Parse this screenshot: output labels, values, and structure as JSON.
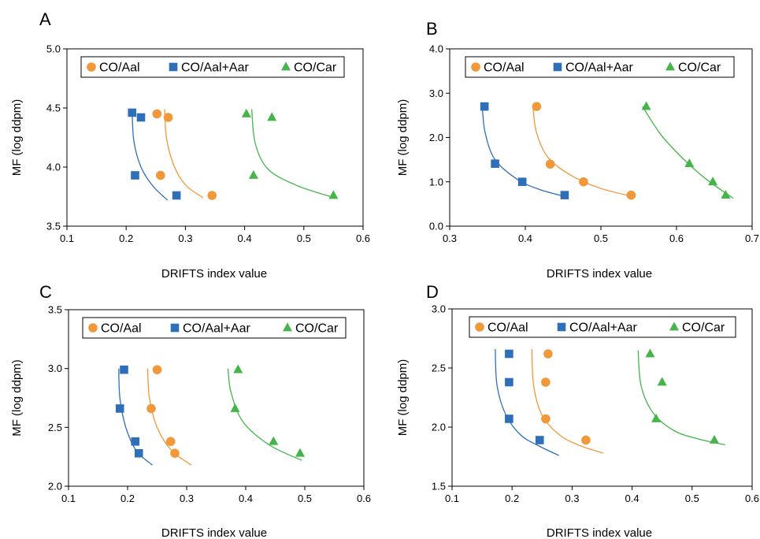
{
  "colors": {
    "aal": "#F0983A",
    "aalaar": "#2F6FB8",
    "car": "#44B549"
  },
  "chart_data": [
    {
      "type": "scatter",
      "panel": "A",
      "xlabel": "DRIFTS index value",
      "ylabel": "MF (log ddpm)",
      "xlim": [
        0.1,
        0.6
      ],
      "ylim": [
        3.5,
        5.0
      ],
      "xticks": [
        "0.1",
        "0.2",
        "0.3",
        "0.4",
        "0.5",
        "0.6"
      ],
      "yticks": [
        "3.5",
        "4.0",
        "4.5",
        "5.0"
      ],
      "legend": "top",
      "grid": false,
      "series": [
        {
          "name": "CO/Aal",
          "marker": "circle",
          "color": "#F0983A",
          "x": [
            0.252,
            0.271,
            0.258,
            0.345
          ],
          "y": [
            4.45,
            4.42,
            3.93,
            3.76
          ],
          "fit": {
            "x": [
              0.265,
              0.268,
              0.28,
              0.3,
              0.33
            ],
            "y": [
              4.49,
              4.25,
              4.02,
              3.85,
              3.74
            ]
          }
        },
        {
          "name": "CO/Aal+Aar",
          "marker": "square",
          "color": "#2F6FB8",
          "x": [
            0.21,
            0.225,
            0.215,
            0.285
          ],
          "y": [
            4.46,
            4.42,
            3.93,
            3.76
          ],
          "fit": {
            "x": [
              0.21,
              0.213,
              0.225,
              0.245,
              0.27
            ],
            "y": [
              4.48,
              4.22,
              4.0,
              3.84,
              3.72
            ]
          }
        },
        {
          "name": "CO/Car",
          "marker": "triangle",
          "color": "#44B549",
          "x": [
            0.403,
            0.446,
            0.415,
            0.55
          ],
          "y": [
            4.45,
            4.42,
            3.93,
            3.76
          ],
          "fit": {
            "x": [
              0.412,
              0.418,
              0.44,
              0.49,
              0.552
            ],
            "y": [
              4.49,
              4.2,
              3.98,
              3.84,
              3.74
            ]
          }
        }
      ]
    },
    {
      "type": "scatter",
      "panel": "B",
      "xlabel": "DRIFTS index value",
      "ylabel": "MF (log ddpm)",
      "xlim": [
        0.3,
        0.7
      ],
      "ylim": [
        0.0,
        4.0
      ],
      "xticks": [
        "0.3",
        "0.4",
        "0.5",
        "0.6",
        "0.7"
      ],
      "yticks": [
        "0.0",
        "1.0",
        "2.0",
        "3.0",
        "4.0"
      ],
      "legend": "top",
      "grid": false,
      "series": [
        {
          "name": "CO/Aal",
          "marker": "circle",
          "color": "#F0983A",
          "x": [
            0.415,
            0.433,
            0.477,
            0.54
          ],
          "y": [
            2.7,
            1.4,
            1.0,
            0.7
          ],
          "fit": {
            "x": [
              0.41,
              0.415,
              0.43,
              0.46,
              0.5,
              0.545
            ],
            "y": [
              2.7,
              2.1,
              1.55,
              1.15,
              0.85,
              0.66
            ]
          }
        },
        {
          "name": "CO/Aal+Aar",
          "marker": "square",
          "color": "#2F6FB8",
          "x": [
            0.346,
            0.36,
            0.396,
            0.452
          ],
          "y": [
            2.7,
            1.41,
            1.0,
            0.7
          ],
          "fit": {
            "x": [
              0.343,
              0.347,
              0.36,
              0.39,
              0.42,
              0.455
            ],
            "y": [
              2.7,
              2.1,
              1.5,
              1.05,
              0.82,
              0.66
            ]
          }
        },
        {
          "name": "CO/Car",
          "marker": "triangle",
          "color": "#44B549",
          "x": [
            0.56,
            0.617,
            0.648,
            0.665
          ],
          "y": [
            2.7,
            1.41,
            1.0,
            0.7
          ],
          "fit": {
            "x": [
              0.555,
              0.58,
              0.61,
              0.64,
              0.675
            ],
            "y": [
              2.7,
              2.05,
              1.5,
              1.05,
              0.63
            ]
          }
        }
      ]
    },
    {
      "type": "scatter",
      "panel": "C",
      "xlabel": "DRIFTS index value",
      "ylabel": "MF (log ddpm)",
      "xlim": [
        0.1,
        0.6
      ],
      "ylim": [
        2.0,
        3.5
      ],
      "xticks": [
        "0.1",
        "0.2",
        "0.3",
        "0.4",
        "0.5",
        "0.6"
      ],
      "yticks": [
        "2.0",
        "2.5",
        "3.0",
        "3.5"
      ],
      "legend": "top",
      "grid": false,
      "series": [
        {
          "name": "CO/Aal",
          "marker": "circle",
          "color": "#F0983A",
          "x": [
            0.25,
            0.24,
            0.273,
            0.28
          ],
          "y": [
            2.99,
            2.66,
            2.38,
            2.28
          ],
          "fit": {
            "x": [
              0.234,
              0.237,
              0.25,
              0.275,
              0.308
            ],
            "y": [
              3.0,
              2.75,
              2.5,
              2.3,
              2.18
            ]
          }
        },
        {
          "name": "CO/Aal+Aar",
          "marker": "square",
          "color": "#2F6FB8",
          "x": [
            0.194,
            0.187,
            0.213,
            0.219
          ],
          "y": [
            2.99,
            2.66,
            2.38,
            2.28
          ],
          "fit": {
            "x": [
              0.185,
              0.187,
              0.197,
              0.215,
              0.242
            ],
            "y": [
              3.0,
              2.75,
              2.5,
              2.3,
              2.18
            ]
          }
        },
        {
          "name": "CO/Car",
          "marker": "triangle",
          "color": "#44B549",
          "x": [
            0.387,
            0.382,
            0.447,
            0.492
          ],
          "y": [
            2.99,
            2.66,
            2.38,
            2.28
          ],
          "fit": {
            "x": [
              0.37,
              0.375,
              0.395,
              0.44,
              0.495
            ],
            "y": [
              3.0,
              2.8,
              2.55,
              2.35,
              2.22
            ]
          }
        }
      ]
    },
    {
      "type": "scatter",
      "panel": "D",
      "xlabel": "DRIFTS index value",
      "ylabel": "MF (log ddpm)",
      "xlim": [
        0.1,
        0.6
      ],
      "ylim": [
        1.5,
        3.0
      ],
      "xticks": [
        "0.1",
        "0.2",
        "0.3",
        "0.4",
        "0.5",
        "0.6"
      ],
      "yticks": [
        "1.5",
        "2.0",
        "2.5",
        "3.0"
      ],
      "legend": "top",
      "grid": false,
      "series": [
        {
          "name": "CO/Aal",
          "marker": "circle",
          "color": "#F0983A",
          "x": [
            0.26,
            0.256,
            0.256,
            0.323
          ],
          "y": [
            2.62,
            2.38,
            2.07,
            1.89
          ],
          "fit": {
            "x": [
              0.233,
              0.236,
              0.25,
              0.28,
              0.315,
              0.352
            ],
            "y": [
              2.66,
              2.35,
              2.1,
              1.93,
              1.84,
              1.78
            ]
          }
        },
        {
          "name": "CO/Aal+Aar",
          "marker": "square",
          "color": "#2F6FB8",
          "x": [
            0.195,
            0.195,
            0.195,
            0.246
          ],
          "y": [
            2.62,
            2.38,
            2.07,
            1.89
          ],
          "fit": {
            "x": [
              0.172,
              0.175,
              0.19,
              0.215,
              0.245,
              0.278
            ],
            "y": [
              2.66,
              2.35,
              2.1,
              1.93,
              1.84,
              1.76
            ]
          }
        },
        {
          "name": "CO/Car",
          "marker": "triangle",
          "color": "#44B549",
          "x": [
            0.43,
            0.45,
            0.44,
            0.537
          ],
          "y": [
            2.62,
            2.38,
            2.07,
            1.89
          ],
          "fit": {
            "x": [
              0.41,
              0.415,
              0.435,
              0.47,
              0.51,
              0.555
            ],
            "y": [
              2.65,
              2.35,
              2.12,
              1.97,
              1.9,
              1.85
            ]
          }
        }
      ]
    }
  ]
}
